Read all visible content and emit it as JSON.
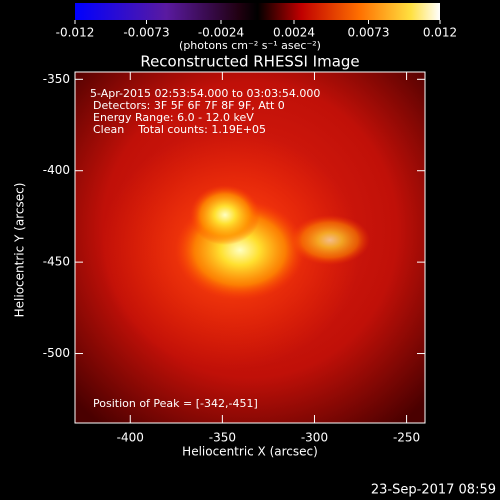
{
  "chart_data": {
    "type": "image",
    "title": "Reconstructed RHESSI Image",
    "xlabel": "Heliocentric X (arcsec)",
    "ylabel": "Heliocentric Y (arcsec)",
    "xlim": [
      -430,
      -240
    ],
    "xticks": [
      -400,
      -350,
      -300,
      -250
    ],
    "ylim": [
      -538,
      -346
    ],
    "yticks": [
      -500,
      -450,
      -400,
      -350
    ],
    "colorbar": {
      "lim": [
        -0.012,
        0.012
      ],
      "ticks": [
        -0.012,
        -0.0073,
        -0.0024,
        0.0024,
        0.0073,
        0.012
      ],
      "label": "(photons cm⁻² s⁻¹ asec⁻²)"
    },
    "annotations": [
      "5-Apr-2015 02:53:54.000 to 03:03:54.000",
      "Detectors: 3F 5F 6F 7F 8F 9F, Att 0",
      "Energy Range: 6.0 - 12.0 keV",
      "Clean    Total counts: 1.19E+05",
      "Position of Peak = [-342,-451]"
    ],
    "timestamp": "23-Sep-2017 08:59"
  }
}
